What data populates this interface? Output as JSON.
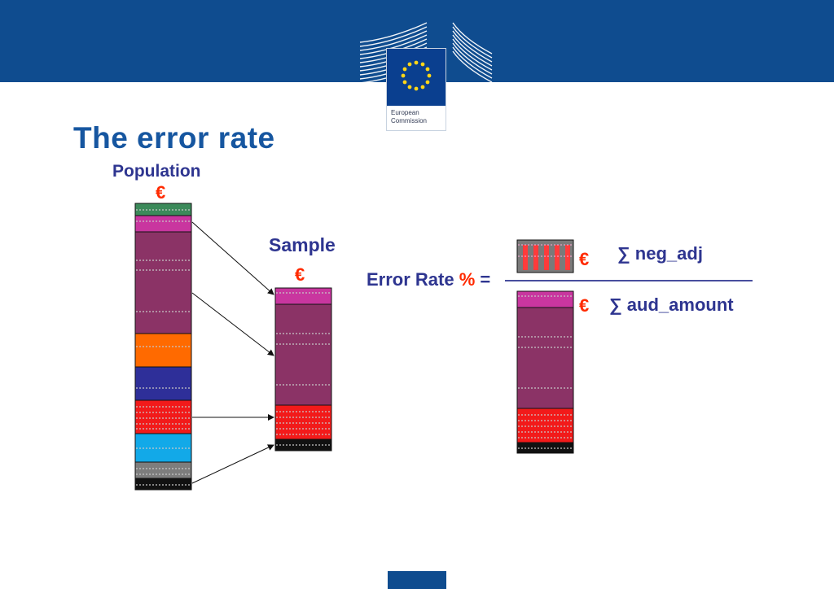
{
  "header": {
    "logo_line1": "European",
    "logo_line2": "Commission"
  },
  "slide": {
    "title": "The error rate"
  },
  "population": {
    "label": "Population",
    "currency": "€"
  },
  "sample": {
    "label": "Sample",
    "currency": "€"
  },
  "formula": {
    "lhs": "Error Rate",
    "percent": "%",
    "equals": "=",
    "numerator_currency": "€",
    "numerator": "∑ neg_adj",
    "denominator_currency": "€",
    "denominator": "∑ aud_amount"
  },
  "colors": {
    "header_blue": "#0f4c8f",
    "title_blue": "#1656a0",
    "label_navy": "#2e3590",
    "euro_red": "#ff2a00",
    "green": "#3c8a5a",
    "magenta": "#c9369f",
    "plum": "#8b3366",
    "orange": "#ff6a00",
    "indigo": "#2e2f99",
    "red": "#f21a1a",
    "cyan": "#12a9e8",
    "grey": "#7d7d7d",
    "black": "#111111"
  }
}
